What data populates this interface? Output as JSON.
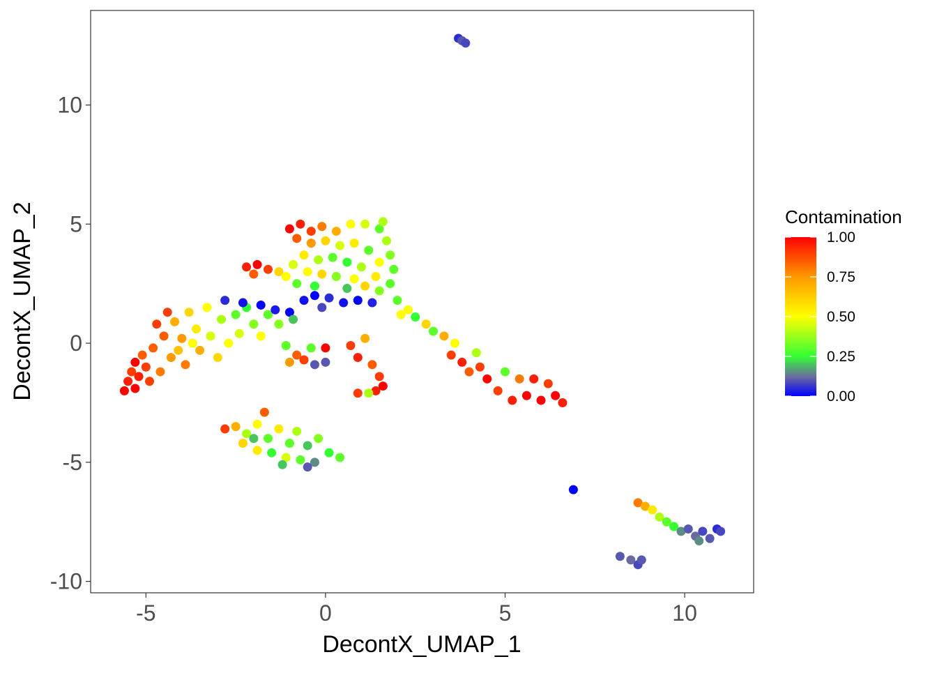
{
  "chart_data": {
    "type": "scatter",
    "title": "",
    "xlabel": "DecontX_UMAP_1",
    "ylabel": "DecontX_UMAP_2",
    "xlim": [
      -6.54,
      11.92
    ],
    "ylim": [
      -10.48,
      13.97
    ],
    "xticks": [
      -5,
      0,
      5,
      10
    ],
    "yticks": [
      -10,
      -5,
      0,
      5,
      10
    ],
    "xtick_labels": [
      "-5",
      "0",
      "5",
      "10"
    ],
    "ytick_labels": [
      "-10",
      "-5",
      "0",
      "5",
      "10"
    ],
    "grid": false,
    "legend": {
      "title": "Contamination",
      "placement": "right",
      "ticks": [
        0.0,
        0.25,
        0.5,
        0.75,
        1.0
      ],
      "tick_labels": [
        "0.00",
        "0.25",
        "0.50",
        "0.75",
        "1.00"
      ],
      "color_scale": [
        {
          "value": 0.0,
          "color": "#0000ff"
        },
        {
          "value": 0.12,
          "color": "#6a6aa0"
        },
        {
          "value": 0.25,
          "color": "#33ff33"
        },
        {
          "value": 0.5,
          "color": "#ffff00"
        },
        {
          "value": 0.75,
          "color": "#ff9900"
        },
        {
          "value": 1.0,
          "color": "#ff0000"
        }
      ]
    },
    "point_fields": [
      "x",
      "y",
      "contamination"
    ],
    "points": [
      [
        -5.6,
        -2.0,
        1
      ],
      [
        -5.5,
        -1.6,
        0.95
      ],
      [
        -5.3,
        -1.9,
        1
      ],
      [
        -5.4,
        -1.2,
        0.9
      ],
      [
        -5.2,
        -1.4,
        0.95
      ],
      [
        -5.0,
        -1.0,
        0.9
      ],
      [
        -5.1,
        -0.5,
        0.85
      ],
      [
        -4.8,
        -0.2,
        0.85
      ],
      [
        -4.9,
        -1.6,
        0.9
      ],
      [
        -4.6,
        -1.2,
        0.8
      ],
      [
        -4.5,
        0.3,
        0.85
      ],
      [
        -4.7,
        0.8,
        0.9
      ],
      [
        -4.3,
        -0.6,
        0.75
      ],
      [
        -4.2,
        0.9,
        0.7
      ],
      [
        -4.0,
        0.2,
        0.75
      ],
      [
        -3.9,
        -0.9,
        0.8
      ],
      [
        -3.8,
        1.3,
        0.6
      ],
      [
        -3.6,
        0.6,
        0.55
      ],
      [
        -3.5,
        -0.3,
        0.7
      ],
      [
        -3.3,
        1.5,
        0.5
      ],
      [
        -3.2,
        0.3,
        0.45
      ],
      [
        -3.0,
        -0.6,
        0.6
      ],
      [
        -2.9,
        1.0,
        0.4
      ],
      [
        -2.7,
        0.0,
        0.5
      ],
      [
        -2.5,
        1.2,
        0.3
      ],
      [
        -2.4,
        0.4,
        0.45
      ],
      [
        -2.2,
        1.5,
        0.25
      ],
      [
        -2.0,
        0.8,
        0.35
      ],
      [
        -1.8,
        0.3,
        0.5
      ],
      [
        -1.6,
        1.2,
        0.3
      ],
      [
        -4.4,
        1.3,
        0.9
      ],
      [
        -5.3,
        -0.8,
        1
      ],
      [
        -4.1,
        -0.3,
        0.65
      ],
      [
        -3.7,
        0.0,
        0.5
      ],
      [
        -2.8,
        1.8,
        0.05
      ],
      [
        -2.3,
        1.7,
        0.02
      ],
      [
        -1.8,
        1.6,
        0.0
      ],
      [
        -1.4,
        1.4,
        0.03
      ],
      [
        -1.0,
        1.3,
        0.0
      ],
      [
        -0.6,
        1.8,
        0.02
      ],
      [
        -0.3,
        2.0,
        0.0
      ],
      [
        0.1,
        1.9,
        0.05
      ],
      [
        0.5,
        1.7,
        0.02
      ],
      [
        0.9,
        1.8,
        0.0
      ],
      [
        1.3,
        1.7,
        0.04
      ],
      [
        -0.1,
        1.5,
        0.08
      ],
      [
        -0.9,
        1.0,
        0.2
      ],
      [
        -1.3,
        0.8,
        0.35
      ],
      [
        -1.0,
        4.8,
        1
      ],
      [
        -0.7,
        5.0,
        0.95
      ],
      [
        -0.4,
        4.7,
        0.9
      ],
      [
        -0.1,
        4.9,
        0.8
      ],
      [
        0.3,
        4.7,
        0.7
      ],
      [
        0.7,
        5.0,
        0.5
      ],
      [
        1.1,
        5.0,
        0.45
      ],
      [
        1.5,
        4.8,
        0.3
      ],
      [
        1.7,
        4.3,
        0.4
      ],
      [
        1.8,
        3.7,
        0.35
      ],
      [
        1.9,
        3.1,
        0.3
      ],
      [
        1.5,
        3.4,
        0.5
      ],
      [
        1.2,
        3.9,
        0.3
      ],
      [
        0.8,
        4.2,
        0.55
      ],
      [
        0.4,
        4.1,
        0.45
      ],
      [
        0.0,
        4.3,
        0.6
      ],
      [
        -0.4,
        4.2,
        0.75
      ],
      [
        -0.8,
        4.4,
        0.85
      ],
      [
        -0.6,
        3.7,
        0.55
      ],
      [
        -0.2,
        3.5,
        0.4
      ],
      [
        0.2,
        3.6,
        0.3
      ],
      [
        0.6,
        3.4,
        0.25
      ],
      [
        1.0,
        3.2,
        0.4
      ],
      [
        1.4,
        2.8,
        0.55
      ],
      [
        1.8,
        2.5,
        0.3
      ],
      [
        0.8,
        2.7,
        0.5
      ],
      [
        0.3,
        2.8,
        0.35
      ],
      [
        -0.1,
        2.9,
        0.6
      ],
      [
        -0.5,
        3.0,
        0.5
      ],
      [
        -0.9,
        3.3,
        0.45
      ],
      [
        -0.8,
        2.5,
        0.3
      ],
      [
        -0.3,
        2.4,
        0.25
      ],
      [
        0.6,
        2.3,
        0.2
      ],
      [
        1.5,
        2.2,
        0.35
      ],
      [
        1.1,
        2.4,
        0.6
      ],
      [
        1.6,
        5.1,
        0.4
      ],
      [
        -2.2,
        3.2,
        0.95
      ],
      [
        -1.9,
        3.3,
        1
      ],
      [
        -1.6,
        3.1,
        0.9
      ],
      [
        -1.3,
        3.0,
        0.6
      ],
      [
        -1.1,
        2.8,
        0.5
      ],
      [
        -2.0,
        2.9,
        0.85
      ],
      [
        -2.8,
        -3.6,
        0.9
      ],
      [
        -2.5,
        -3.5,
        0.7
      ],
      [
        -2.2,
        -3.8,
        0.4
      ],
      [
        -1.9,
        -3.4,
        0.5
      ],
      [
        -1.7,
        -2.9,
        0.85
      ],
      [
        -1.6,
        -4.0,
        0.3
      ],
      [
        -1.3,
        -3.6,
        0.55
      ],
      [
        -1.0,
        -4.2,
        0.3
      ],
      [
        -0.8,
        -3.7,
        0.4
      ],
      [
        -0.5,
        -4.3,
        0.2
      ],
      [
        -0.2,
        -4.0,
        0.35
      ],
      [
        0.1,
        -4.6,
        0.25
      ],
      [
        0.4,
        -4.8,
        0.3
      ],
      [
        -0.3,
        -5.0,
        0.15
      ],
      [
        -0.7,
        -4.9,
        0.3
      ],
      [
        -1.1,
        -4.8,
        0.45
      ],
      [
        -1.5,
        -4.6,
        0.25
      ],
      [
        -1.9,
        -4.5,
        0.55
      ],
      [
        -2.3,
        -4.2,
        0.6
      ],
      [
        -2.0,
        -4.0,
        0.2
      ],
      [
        -1.2,
        -5.1,
        0.2
      ],
      [
        -0.5,
        -5.2,
        0.1
      ],
      [
        -1.1,
        -0.1,
        0.3
      ],
      [
        -0.8,
        -0.5,
        0.85
      ],
      [
        -0.6,
        -0.7,
        0.9
      ],
      [
        -0.4,
        -0.2,
        0.3
      ],
      [
        -1.0,
        -0.8,
        0.75
      ],
      [
        0.0,
        -0.2,
        1
      ],
      [
        0.0,
        -0.8,
        0.1
      ],
      [
        -0.3,
        -0.9,
        0.1
      ],
      [
        0.7,
        -0.1,
        0.9
      ],
      [
        0.9,
        -0.6,
        0.95
      ],
      [
        1.1,
        0.2,
        0.7
      ],
      [
        1.3,
        -0.9,
        0.85
      ],
      [
        1.5,
        -1.4,
        0.9
      ],
      [
        1.4,
        -2.0,
        0.95
      ],
      [
        0.9,
        -2.1,
        0.9
      ],
      [
        1.2,
        -2.1,
        0.4
      ],
      [
        1.6,
        -1.8,
        1
      ],
      [
        2.0,
        1.8,
        0.3
      ],
      [
        2.3,
        1.4,
        0.5
      ],
      [
        2.5,
        1.1,
        0.25
      ],
      [
        2.8,
        0.8,
        0.6
      ],
      [
        3.0,
        0.5,
        0.3
      ],
      [
        3.3,
        0.3,
        0.7
      ],
      [
        3.6,
        0.0,
        0.5
      ],
      [
        3.5,
        -0.5,
        0.9
      ],
      [
        3.8,
        -0.8,
        0.95
      ],
      [
        4.0,
        -1.2,
        0.85
      ],
      [
        4.3,
        -1.0,
        0.9
      ],
      [
        4.5,
        -1.5,
        1
      ],
      [
        4.8,
        -2.0,
        0.9
      ],
      [
        5.0,
        -1.2,
        0.3
      ],
      [
        5.2,
        -2.4,
        0.95
      ],
      [
        5.4,
        -1.5,
        0.8
      ],
      [
        5.6,
        -2.2,
        1
      ],
      [
        5.8,
        -1.5,
        0.95
      ],
      [
        6.0,
        -2.4,
        1
      ],
      [
        6.2,
        -1.7,
        0.9
      ],
      [
        6.4,
        -2.2,
        1
      ],
      [
        6.6,
        -2.5,
        0.95
      ],
      [
        4.2,
        -0.4,
        0.4
      ],
      [
        2.1,
        1.2,
        0.5
      ],
      [
        3.7,
        12.8,
        0.05
      ],
      [
        3.8,
        12.7,
        0.1
      ],
      [
        3.9,
        12.6,
        0.08
      ],
      [
        6.9,
        -6.15,
        0.0
      ],
      [
        8.7,
        -6.7,
        0.8
      ],
      [
        8.9,
        -6.85,
        0.7
      ],
      [
        9.1,
        -7.0,
        0.55
      ],
      [
        9.3,
        -7.3,
        0.4
      ],
      [
        9.5,
        -7.5,
        0.3
      ],
      [
        9.7,
        -7.7,
        0.25
      ],
      [
        9.9,
        -7.9,
        0.15
      ],
      [
        10.1,
        -7.8,
        0.1
      ],
      [
        10.3,
        -8.1,
        0.12
      ],
      [
        10.5,
        -7.9,
        0.08
      ],
      [
        10.7,
        -8.2,
        0.1
      ],
      [
        10.9,
        -7.8,
        0.05
      ],
      [
        10.4,
        -8.3,
        0.15
      ],
      [
        11.0,
        -7.9,
        0.08
      ],
      [
        8.2,
        -8.95,
        0.1
      ],
      [
        8.5,
        -9.1,
        0.12
      ],
      [
        8.7,
        -9.3,
        0.08
      ],
      [
        8.8,
        -9.1,
        0.1
      ]
    ]
  }
}
